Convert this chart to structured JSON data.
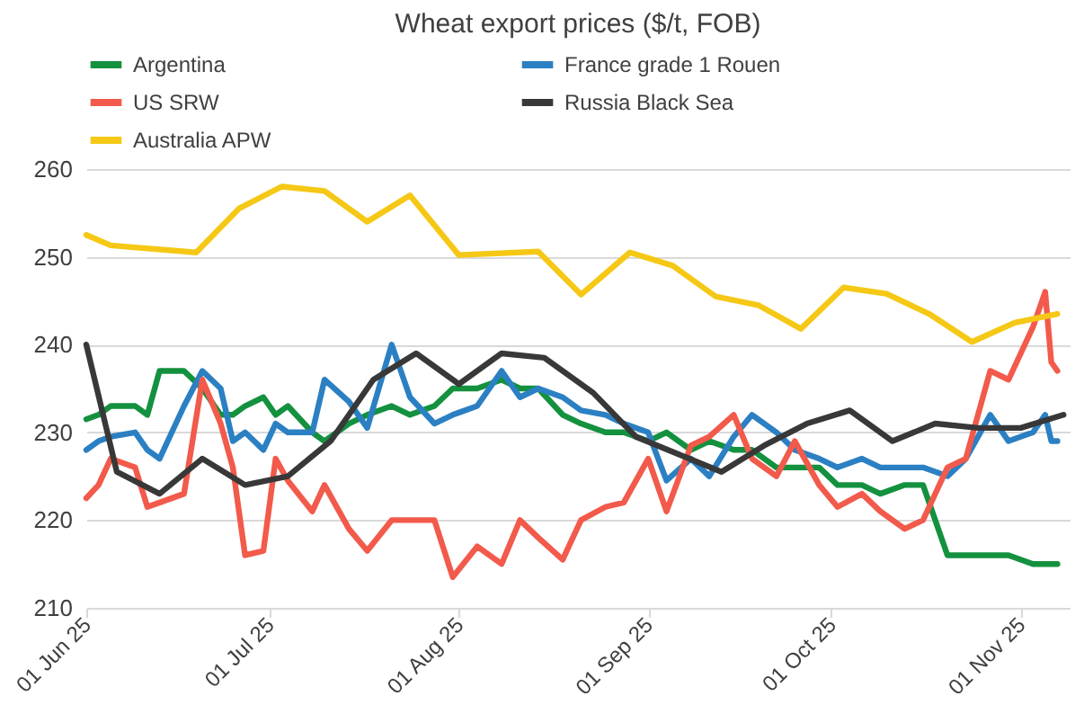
{
  "chart_data": {
    "type": "line",
    "title": "Wheat export prices ($/t, FOB)",
    "x": [
      "2025-06-01",
      "2025-06-03",
      "2025-06-05",
      "2025-06-09",
      "2025-06-11",
      "2025-06-13",
      "2025-06-17",
      "2025-06-20",
      "2025-06-23",
      "2025-06-25",
      "2025-06-27",
      "2025-06-30",
      "2025-07-02",
      "2025-07-04",
      "2025-07-08",
      "2025-07-10",
      "2025-07-14",
      "2025-07-17",
      "2025-07-21",
      "2025-07-24",
      "2025-07-28",
      "2025-07-31",
      "2025-08-04",
      "2025-08-08",
      "2025-08-11",
      "2025-08-14",
      "2025-08-18",
      "2025-08-21",
      "2025-08-25",
      "2025-08-28",
      "2025-09-01",
      "2025-09-04",
      "2025-09-08",
      "2025-09-11",
      "2025-09-15",
      "2025-09-18",
      "2025-09-22",
      "2025-09-25",
      "2025-09-29",
      "2025-10-02",
      "2025-10-06",
      "2025-10-09",
      "2025-10-13",
      "2025-10-16",
      "2025-10-20",
      "2025-10-23",
      "2025-10-27",
      "2025-10-30",
      "2025-11-03",
      "2025-11-05",
      "2025-11-06",
      "2025-11-07"
    ],
    "series": [
      {
        "name": "Argentina",
        "color": "#13913f",
        "values": [
          231.5,
          232,
          233,
          233,
          232,
          237,
          237,
          235,
          232,
          232,
          233,
          234,
          232,
          233,
          230,
          229,
          231,
          232,
          233,
          232,
          233,
          235,
          235,
          236,
          235,
          235,
          232,
          231,
          230,
          230,
          229,
          230,
          228,
          229,
          228,
          228,
          226,
          226,
          226,
          224,
          224,
          223,
          224,
          224,
          216,
          216,
          216,
          216,
          215,
          215,
          215,
          215
        ]
      },
      {
        "name": "France grade 1 Rouen",
        "color": "#2b80c3",
        "values": [
          228,
          229,
          229.5,
          230,
          228,
          227,
          233,
          237,
          235,
          229,
          230,
          228,
          231,
          230,
          230,
          236,
          233.5,
          230.5,
          240,
          234,
          231,
          232,
          233,
          237,
          234,
          235,
          234,
          232.5,
          232,
          231,
          230,
          224.5,
          227,
          225,
          229.5,
          232,
          230,
          228,
          227,
          226,
          227,
          226,
          226,
          226,
          225,
          227,
          232,
          229,
          230,
          232,
          229,
          229
        ]
      },
      {
        "name": "US SRW",
        "color": "#f25a4b",
        "values": [
          222.5,
          224,
          227,
          226,
          221.5,
          222,
          223,
          236,
          231,
          226,
          216,
          216.5,
          227,
          224.5,
          221,
          224,
          219,
          216.5,
          220,
          220,
          220,
          213.5,
          217,
          215,
          220,
          218,
          215.5,
          220,
          221.5,
          222,
          227,
          221,
          228.5,
          229.5,
          232,
          227,
          225,
          229,
          224,
          221.5,
          223,
          221,
          219,
          220,
          226,
          227,
          237,
          236,
          242,
          246,
          238,
          237
        ]
      },
      {
        "name": "Russia Black Sea",
        "color": "#383838",
        "x": [
          "2025-06-01",
          "2025-06-06",
          "2025-06-13",
          "2025-06-20",
          "2025-06-27",
          "2025-07-04",
          "2025-07-11",
          "2025-07-18",
          "2025-07-25",
          "2025-08-01",
          "2025-08-08",
          "2025-08-15",
          "2025-08-23",
          "2025-08-30",
          "2025-09-06",
          "2025-09-13",
          "2025-09-20",
          "2025-09-27",
          "2025-10-04",
          "2025-10-11",
          "2025-10-18",
          "2025-10-25",
          "2025-11-01",
          "2025-11-08"
        ],
        "values": [
          240,
          225.5,
          223,
          227,
          224,
          225,
          229,
          236,
          239,
          235.5,
          239,
          238.5,
          234.5,
          229.5,
          227.5,
          225.5,
          228.5,
          231,
          232.5,
          229,
          231,
          230.5,
          230.5,
          232
        ]
      },
      {
        "name": "Australia APW",
        "color": "#f5c816",
        "x": [
          "2025-06-01",
          "2025-06-05",
          "2025-06-19",
          "2025-06-26",
          "2025-07-03",
          "2025-07-10",
          "2025-07-17",
          "2025-07-24",
          "2025-08-01",
          "2025-08-14",
          "2025-08-21",
          "2025-08-29",
          "2025-09-05",
          "2025-09-12",
          "2025-09-19",
          "2025-09-26",
          "2025-10-03",
          "2025-10-10",
          "2025-10-17",
          "2025-10-24",
          "2025-10-31",
          "2025-11-07"
        ],
        "values": [
          252.5,
          251.3,
          250.5,
          255.5,
          258,
          257.5,
          254,
          257,
          250.2,
          250.6,
          245.7,
          250.5,
          249,
          245.5,
          244.5,
          241.8,
          246.5,
          245.8,
          243.5,
          240.3,
          242.5,
          243.5
        ]
      }
    ],
    "xlim": [
      "2025-06-01",
      "2025-11-09"
    ],
    "xticks": [
      {
        "value": "2025-06-01",
        "label": "01 Jun 25"
      },
      {
        "value": "2025-07-01",
        "label": "01 Jul 25"
      },
      {
        "value": "2025-08-01",
        "label": "01 Aug 25"
      },
      {
        "value": "2025-09-01",
        "label": "01 Sep 25"
      },
      {
        "value": "2025-10-01",
        "label": "01 Oct 25"
      },
      {
        "value": "2025-11-01",
        "label": "01 Nov 25"
      }
    ],
    "ylim": [
      210,
      260
    ],
    "yticks": [
      210,
      220,
      230,
      240,
      250,
      260
    ],
    "grid": "y",
    "legend": "top",
    "marker": "none",
    "line_style": "solid"
  }
}
